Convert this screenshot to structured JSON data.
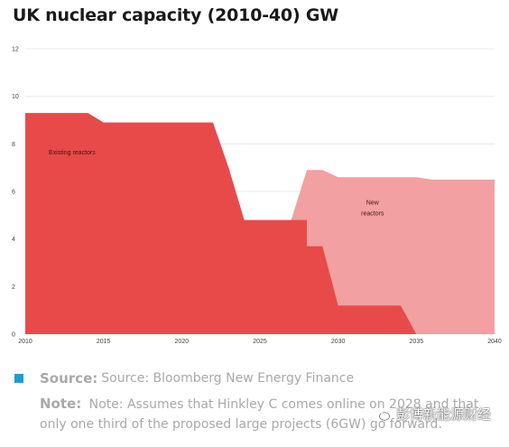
{
  "title": "UK nuclear capacity (2010-40) GW",
  "chart_data": {
    "type": "area",
    "xlim": [
      2010,
      2040
    ],
    "ylim": [
      0,
      12
    ],
    "x_ticks": [
      2010,
      2015,
      2020,
      2025,
      2030,
      2035,
      2040
    ],
    "y_ticks": [
      0,
      2,
      4,
      6,
      8,
      10,
      12
    ],
    "series": [
      {
        "name": "Existing reactors",
        "color": "#e84a4a",
        "points": [
          [
            2010,
            9.3
          ],
          [
            2014,
            9.3
          ],
          [
            2015,
            8.9
          ],
          [
            2022,
            8.9
          ],
          [
            2023,
            7.0
          ],
          [
            2024,
            4.8
          ],
          [
            2028,
            4.8
          ],
          [
            2028,
            3.7
          ],
          [
            2029,
            3.7
          ],
          [
            2030,
            1.2
          ],
          [
            2034,
            1.2
          ],
          [
            2035,
            0
          ]
        ]
      },
      {
        "name": "New reactors",
        "color": "#f2a0a2",
        "top_points": [
          [
            2027,
            4.8
          ],
          [
            2028,
            6.9
          ],
          [
            2029,
            6.9
          ],
          [
            2030,
            6.6
          ],
          [
            2035,
            6.6
          ],
          [
            2036,
            6.5
          ],
          [
            2040,
            6.5
          ]
        ]
      }
    ],
    "labels": {
      "existing": "Existing reactors",
      "new_line1": "New",
      "new_line2": "reactors"
    },
    "grid": true
  },
  "footer": {
    "source_label": "Source:",
    "source_text": "Source: Bloomberg New Energy Finance",
    "note_label": "Note:",
    "note_text": "Note: Assumes that Hinkley C comes online on 2028 and that only one third of the proposed large projects (6GW) go forward.",
    "accent_color": "#1f9bd7"
  },
  "watermark": {
    "text": "彭博新能源财经"
  }
}
